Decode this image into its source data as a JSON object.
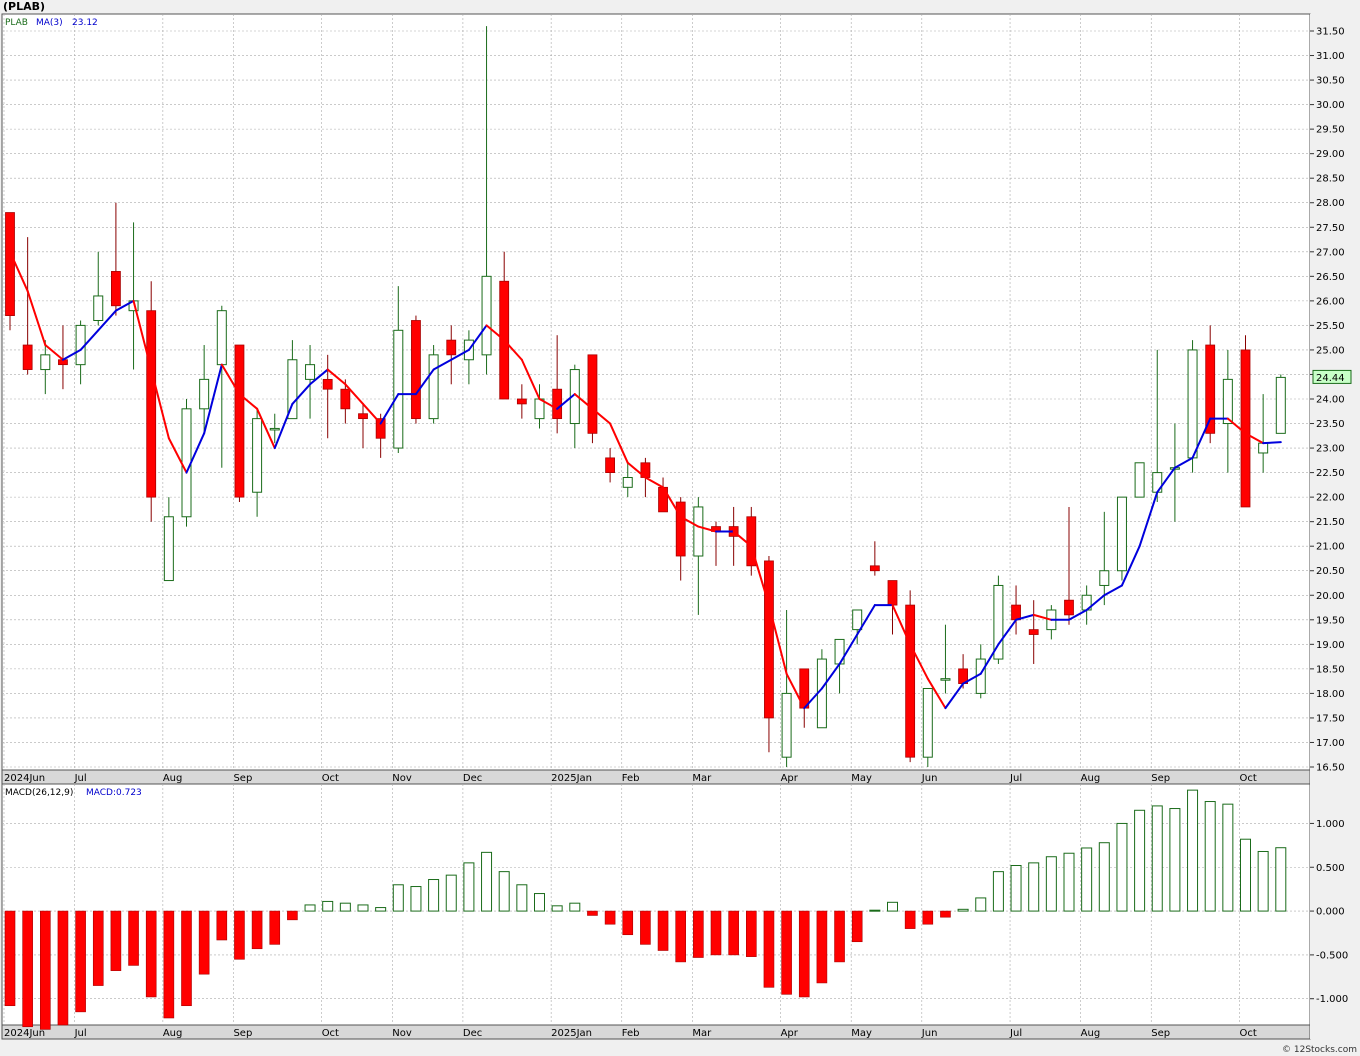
{
  "header": {
    "title": "(PLAB)",
    "legend_symbol": "PLAB",
    "legend_ma": "MA(3)",
    "legend_ma_value": "23.12",
    "macd_label": "MACD(26,12,9)",
    "macd_value_label": "MACD:0.723",
    "current_price_label": "24.44",
    "watermark": "© 12Stocks.com"
  },
  "colors": {
    "up_candle": "#1a6b1a",
    "down_candle": "#ff0000",
    "ma_up": "#0000dd",
    "ma_down": "#ff0000",
    "grid": "#aaaaaa",
    "axis_band": "#d8d8d8"
  },
  "chart_data": [
    {
      "type": "candlestick",
      "interval": "weekly",
      "y_axis": {
        "min": 16.5,
        "max": 31.5,
        "step": 0.5,
        "tick_labels": [
          "16.50",
          "17.00",
          "17.50",
          "18.00",
          "18.50",
          "19.00",
          "19.50",
          "20.00",
          "20.50",
          "21.00",
          "21.50",
          "22.00",
          "22.50",
          "23.00",
          "23.50",
          "24.00",
          "24.50",
          "25.00",
          "25.50",
          "26.00",
          "26.50",
          "27.00",
          "27.50",
          "28.00",
          "28.50",
          "29.00",
          "29.50",
          "30.00",
          "30.50",
          "31.00",
          "31.50"
        ]
      },
      "x_axis_labels": [
        {
          "label": "2024Jun",
          "week": 0
        },
        {
          "label": "Jul",
          "week": 4
        },
        {
          "label": "Aug",
          "week": 9
        },
        {
          "label": "Sep",
          "week": 13
        },
        {
          "label": "Oct",
          "week": 18
        },
        {
          "label": "Nov",
          "week": 22
        },
        {
          "label": "Dec",
          "week": 26
        },
        {
          "label": "2025Jan",
          "week": 31
        },
        {
          "label": "Feb",
          "week": 35
        },
        {
          "label": "Mar",
          "week": 39
        },
        {
          "label": "Apr",
          "week": 44
        },
        {
          "label": "May",
          "week": 48
        },
        {
          "label": "Jun",
          "week": 52
        },
        {
          "label": "Jul",
          "week": 57
        },
        {
          "label": "Aug",
          "week": 61
        },
        {
          "label": "Sep",
          "week": 65
        },
        {
          "label": "Oct",
          "week": 70
        }
      ],
      "grid": true,
      "ohlc": [
        [
          27.8,
          27.8,
          25.4,
          25.7
        ],
        [
          25.1,
          27.3,
          24.5,
          24.6
        ],
        [
          24.6,
          25.2,
          24.1,
          24.9
        ],
        [
          24.8,
          25.5,
          24.2,
          24.7
        ],
        [
          24.7,
          25.6,
          24.3,
          25.5
        ],
        [
          25.6,
          27.0,
          25.5,
          26.1
        ],
        [
          26.6,
          28.0,
          25.7,
          25.9
        ],
        [
          25.8,
          27.6,
          24.6,
          26.0
        ],
        [
          25.8,
          26.4,
          21.5,
          22.0
        ],
        [
          20.3,
          22.0,
          20.3,
          21.6
        ],
        [
          21.6,
          24.0,
          21.4,
          23.8
        ],
        [
          23.8,
          25.1,
          23.3,
          24.4
        ],
        [
          24.7,
          25.9,
          22.6,
          25.8
        ],
        [
          25.1,
          25.1,
          21.9,
          22.0
        ],
        [
          22.1,
          23.8,
          21.6,
          23.6
        ],
        [
          23.4,
          23.7,
          23.1,
          23.4
        ],
        [
          23.6,
          25.2,
          23.6,
          24.8
        ],
        [
          24.4,
          25.1,
          23.6,
          24.7
        ],
        [
          24.4,
          24.9,
          23.2,
          24.2
        ],
        [
          24.2,
          24.4,
          23.5,
          23.8
        ],
        [
          23.7,
          23.9,
          23.0,
          23.6
        ],
        [
          23.6,
          23.7,
          22.8,
          23.2
        ],
        [
          23.0,
          26.3,
          22.9,
          25.4
        ],
        [
          25.6,
          25.7,
          23.5,
          23.6
        ],
        [
          23.6,
          25.1,
          23.5,
          24.9
        ],
        [
          25.2,
          25.5,
          24.3,
          24.9
        ],
        [
          24.8,
          25.4,
          24.3,
          25.2
        ],
        [
          24.9,
          31.6,
          24.5,
          26.5
        ],
        [
          26.4,
          27.0,
          24.0,
          24.0
        ],
        [
          24.0,
          24.3,
          23.6,
          23.9
        ],
        [
          23.6,
          24.3,
          23.4,
          24.0
        ],
        [
          24.2,
          25.3,
          23.3,
          23.6
        ],
        [
          23.5,
          24.7,
          23.0,
          24.6
        ],
        [
          24.9,
          24.9,
          23.1,
          23.3
        ],
        [
          22.8,
          23.0,
          22.3,
          22.5
        ],
        [
          22.2,
          22.7,
          22.0,
          22.4
        ],
        [
          22.7,
          22.8,
          22.0,
          22.4
        ],
        [
          22.2,
          22.4,
          21.7,
          21.7
        ],
        [
          21.9,
          22.0,
          20.3,
          20.8
        ],
        [
          20.8,
          22.0,
          19.6,
          21.8
        ],
        [
          21.4,
          21.5,
          20.6,
          21.3
        ],
        [
          21.4,
          21.8,
          20.6,
          21.2
        ],
        [
          21.6,
          21.8,
          20.4,
          20.6
        ],
        [
          20.7,
          20.8,
          16.8,
          17.5
        ],
        [
          16.7,
          19.7,
          16.5,
          18.0
        ],
        [
          18.5,
          18.5,
          17.3,
          17.7
        ],
        [
          17.3,
          18.9,
          17.3,
          18.7
        ],
        [
          18.6,
          19.0,
          18.0,
          19.1
        ],
        [
          19.3,
          19.7,
          19.0,
          19.7
        ],
        [
          20.6,
          21.1,
          20.4,
          20.5
        ],
        [
          20.3,
          20.3,
          19.2,
          19.8
        ],
        [
          19.8,
          20.1,
          16.6,
          16.7
        ],
        [
          16.7,
          18.1,
          16.5,
          18.1
        ],
        [
          18.3,
          19.4,
          18.0,
          18.3
        ],
        [
          18.5,
          18.8,
          18.1,
          18.2
        ],
        [
          18.0,
          19.0,
          17.9,
          18.7
        ],
        [
          18.7,
          20.4,
          18.6,
          20.2
        ],
        [
          19.8,
          20.2,
          19.2,
          19.5
        ],
        [
          19.3,
          19.9,
          18.6,
          19.2
        ],
        [
          19.3,
          19.8,
          19.1,
          19.7
        ],
        [
          19.9,
          21.8,
          19.4,
          19.6
        ],
        [
          19.7,
          20.2,
          19.4,
          20.0
        ],
        [
          20.2,
          21.7,
          19.8,
          20.5
        ],
        [
          20.5,
          22.0,
          20.3,
          22.0
        ],
        [
          22.0,
          22.7,
          22.0,
          22.7
        ],
        [
          22.1,
          25.0,
          21.9,
          22.5
        ],
        [
          22.6,
          23.5,
          21.5,
          22.6
        ],
        [
          22.8,
          25.2,
          22.5,
          25.0
        ],
        [
          25.1,
          25.5,
          23.1,
          23.3
        ],
        [
          23.5,
          25.0,
          22.5,
          24.4
        ],
        [
          25.0,
          25.3,
          21.8,
          21.8
        ],
        [
          22.9,
          24.1,
          22.5,
          23.1
        ],
        [
          23.3,
          24.5,
          23.3,
          24.44
        ]
      ],
      "ma3": [
        27.0,
        26.2,
        25.1,
        24.8,
        25.0,
        25.4,
        25.8,
        26.0,
        24.6,
        23.2,
        22.5,
        23.3,
        24.7,
        24.1,
        23.8,
        23.0,
        23.9,
        24.3,
        24.6,
        24.3,
        23.9,
        23.5,
        24.1,
        24.1,
        24.6,
        24.8,
        25.0,
        25.5,
        25.2,
        24.8,
        24.0,
        23.8,
        24.1,
        23.8,
        23.5,
        22.7,
        22.4,
        22.2,
        21.6,
        21.4,
        21.3,
        21.3,
        21.0,
        19.8,
        18.4,
        17.7,
        18.1,
        18.6,
        19.2,
        19.8,
        19.8,
        19.0,
        18.3,
        17.7,
        18.2,
        18.4,
        19.0,
        19.5,
        19.6,
        19.5,
        19.5,
        19.7,
        20.0,
        20.2,
        21.0,
        22.1,
        22.6,
        22.8,
        23.6,
        23.6,
        23.3,
        23.1,
        23.12
      ]
    },
    {
      "type": "bar",
      "name": "MACD(26,12,9)",
      "y_axis": {
        "min": -1.3,
        "max": 1.45,
        "tick_labels": [
          "-1.000",
          "-0.500",
          "0.000",
          "0.500",
          "1.000"
        ]
      },
      "values": [
        -1.08,
        -1.32,
        -1.35,
        -1.3,
        -1.15,
        -0.85,
        -0.68,
        -0.62,
        -0.98,
        -1.22,
        -1.08,
        -0.72,
        -0.33,
        -0.55,
        -0.43,
        -0.38,
        -0.1,
        0.07,
        0.11,
        0.09,
        0.07,
        0.04,
        0.3,
        0.28,
        0.36,
        0.41,
        0.55,
        0.67,
        0.45,
        0.3,
        0.2,
        0.06,
        0.09,
        -0.05,
        -0.15,
        -0.27,
        -0.38,
        -0.45,
        -0.58,
        -0.53,
        -0.5,
        -0.5,
        -0.52,
        -0.87,
        -0.95,
        -0.98,
        -0.82,
        -0.58,
        -0.35,
        0.01,
        0.1,
        -0.2,
        -0.15,
        -0.07,
        0.02,
        0.15,
        0.45,
        0.52,
        0.55,
        0.62,
        0.66,
        0.72,
        0.78,
        1.0,
        1.15,
        1.2,
        1.17,
        1.38,
        1.25,
        1.22,
        0.82,
        0.68,
        0.723
      ]
    }
  ]
}
